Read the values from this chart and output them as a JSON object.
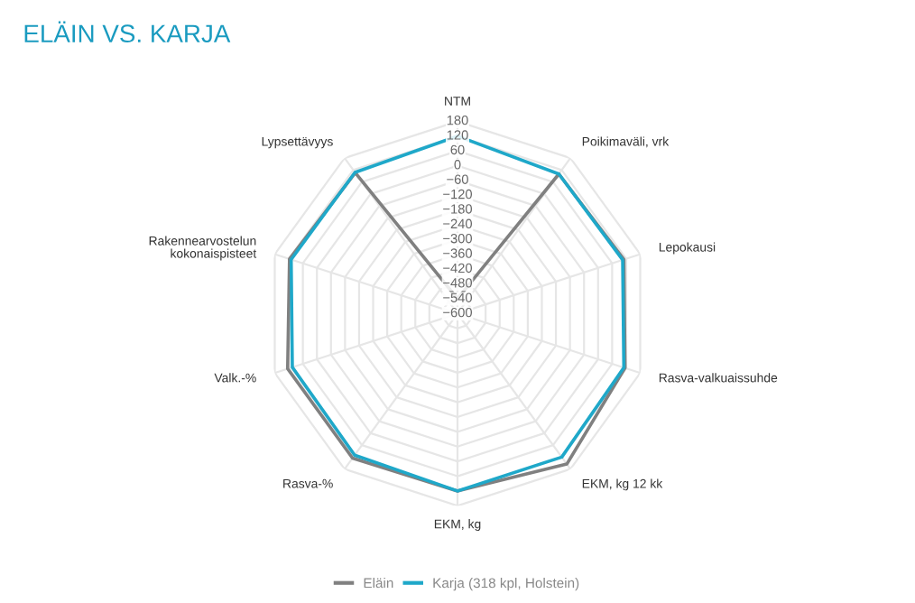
{
  "chart_data": {
    "type": "radar",
    "title": "ELÄIN VS. KARJA",
    "categories": [
      "NTM",
      "Poikimaväli, vrk",
      "Lepokausi",
      "Rasva-valkuaissuhde",
      "EKM, kg 12 kk",
      "EKM, kg",
      "Rasva-%",
      "Valk.-%",
      "Rakennearvostelun\nkokonaispisteet",
      "Lypsettävyys"
    ],
    "series": [
      {
        "name": "Eläin",
        "color": "#808080",
        "values": [
          -540,
          100,
          110,
          115,
          155,
          120,
          125,
          125,
          117,
          106
        ]
      },
      {
        "name": "Karja (318 kpl, Holstein)",
        "color": "#1fa8c9",
        "values": [
          120,
          100,
          105,
          110,
          120,
          120,
          110,
          105,
          110,
          108
        ]
      }
    ],
    "ylim": [
      -600,
      180
    ],
    "yticks": [
      180,
      120,
      60,
      0,
      {
        "value": -60,
        "label": "−60"
      },
      {
        "value": -120,
        "label": "−120"
      },
      {
        "value": -180,
        "label": "−180"
      },
      {
        "value": -240,
        "label": "−240"
      },
      {
        "value": -300,
        "label": "−300"
      },
      {
        "value": -360,
        "label": "−360"
      },
      {
        "value": -420,
        "label": "−420"
      },
      {
        "value": -480,
        "label": "−480"
      },
      {
        "value": -540,
        "label": "−540"
      },
      {
        "value": -600,
        "label": "−600"
      }
    ],
    "grid": true,
    "legend": "bottom"
  }
}
